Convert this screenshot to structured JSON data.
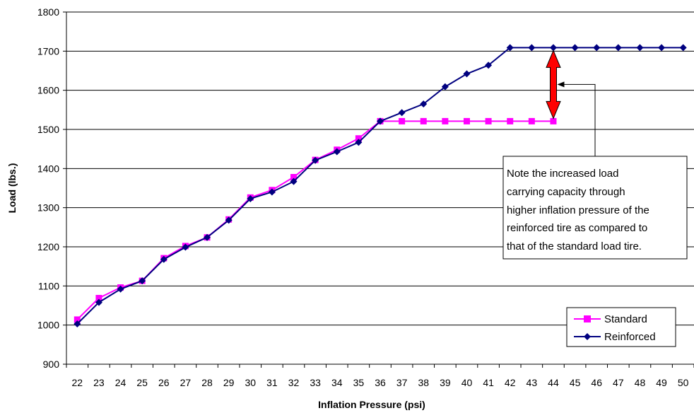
{
  "chart_data": {
    "type": "line",
    "title": "",
    "xlabel": "Inflation Pressure (psi)",
    "ylabel": "Load (lbs.)",
    "ylim": [
      900,
      1800
    ],
    "yticks": [
      900,
      1000,
      1100,
      1200,
      1300,
      1400,
      1500,
      1600,
      1700,
      1800
    ],
    "grid": "horizontal",
    "legend": "bottom-right",
    "categories": [
      "22",
      "23",
      "24",
      "25",
      "26",
      "27",
      "28",
      "29",
      "30",
      "31",
      "32",
      "33",
      "34",
      "35",
      "36",
      "37",
      "38",
      "39",
      "40",
      "41",
      "42",
      "43",
      "44",
      "45",
      "46",
      "47",
      "48",
      "49",
      "50"
    ],
    "series": [
      {
        "name": "Standard",
        "color": "#ff00ff",
        "marker": "square",
        "values": [
          1014,
          1069,
          1096,
          1113,
          1171,
          1202,
          1224,
          1270,
          1326,
          1345,
          1378,
          1422,
          1448,
          1477,
          1521,
          1521,
          1521,
          1521,
          1521,
          1521,
          1521,
          1521,
          1521,
          null,
          null,
          null,
          null,
          null,
          null
        ]
      },
      {
        "name": "Reinforced",
        "color": "#000080",
        "marker": "diamond",
        "values": [
          1003,
          1058,
          1092,
          1113,
          1168,
          1199,
          1224,
          1268,
          1323,
          1340,
          1367,
          1421,
          1443,
          1467,
          1521,
          1543,
          1565,
          1609,
          1642,
          1664,
          1709,
          1709,
          1709,
          1709,
          1709,
          1709,
          1709,
          1709,
          1709
        ]
      }
    ],
    "annotation": {
      "text": [
        "Note the increased load",
        "carrying capacity through",
        "higher inflation pressure of the",
        "reinforced tire as compared to",
        "that of the standard load tire."
      ],
      "arrow_color": "#ff0000",
      "arrow_category": "44",
      "arrow_from": 1521,
      "arrow_to": 1709
    }
  }
}
